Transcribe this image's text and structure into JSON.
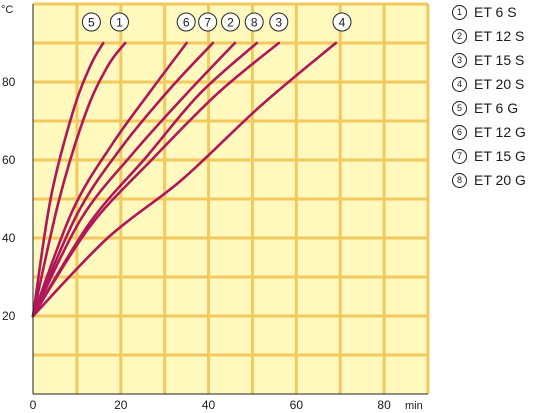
{
  "chart_data": {
    "type": "line",
    "title": "",
    "xlabel": "",
    "ylabel": "",
    "x_unit": "min",
    "y_unit": "°C",
    "xlim": [
      0,
      90
    ],
    "ylim": [
      0,
      100
    ],
    "x_ticks": [
      "0",
      "20",
      "40",
      "60",
      "80"
    ],
    "y_ticks": [
      "20",
      "40",
      "60",
      "80"
    ],
    "grid": true,
    "background_color": "#fff9bd",
    "grid_color": "#f2c95e",
    "line_color": "#b0165a",
    "legend_position": "right",
    "series": [
      {
        "mark": "①",
        "name": "ET 6 S",
        "points": [
          [
            0,
            20
          ],
          [
            6,
            50
          ],
          [
            12,
            72
          ],
          [
            17,
            84
          ],
          [
            21,
            90
          ]
        ]
      },
      {
        "mark": "②",
        "name": "ET 12 S",
        "points": [
          [
            0,
            20
          ],
          [
            11,
            45
          ],
          [
            23,
            62
          ],
          [
            35,
            77
          ],
          [
            46,
            90
          ]
        ]
      },
      {
        "mark": "③",
        "name": "ET 15 S",
        "points": [
          [
            0,
            20
          ],
          [
            13,
            43
          ],
          [
            27,
            60
          ],
          [
            42,
            77
          ],
          [
            56,
            90
          ]
        ]
      },
      {
        "mark": "④",
        "name": "ET 20 S",
        "points": [
          [
            0,
            20
          ],
          [
            17,
            40
          ],
          [
            34,
            55
          ],
          [
            52,
            74
          ],
          [
            69,
            90
          ]
        ]
      },
      {
        "mark": "⑤",
        "name": "ET 6 G",
        "points": [
          [
            0,
            20
          ],
          [
            4,
            50
          ],
          [
            9,
            72
          ],
          [
            13,
            84
          ],
          [
            16,
            90
          ]
        ]
      },
      {
        "mark": "⑥",
        "name": "ET 12 G",
        "points": [
          [
            0,
            20
          ],
          [
            9,
            47
          ],
          [
            18,
            64
          ],
          [
            27,
            78
          ],
          [
            35,
            90
          ]
        ]
      },
      {
        "mark": "⑦",
        "name": "ET 15 G",
        "points": [
          [
            0,
            20
          ],
          [
            10,
            46
          ],
          [
            20,
            63
          ],
          [
            31,
            78
          ],
          [
            41,
            90
          ]
        ]
      },
      {
        "mark": "⑧",
        "name": "ET 20 G",
        "points": [
          [
            0,
            20
          ],
          [
            13,
            44
          ],
          [
            26,
            61
          ],
          [
            38,
            77
          ],
          [
            51,
            90
          ]
        ]
      }
    ],
    "top_labels": [
      {
        "mark": "⑤",
        "x": 13.3
      },
      {
        "mark": "①",
        "x": 19.7
      },
      {
        "mark": "⑥",
        "x": 34.9
      },
      {
        "mark": "⑦",
        "x": 39.8
      },
      {
        "mark": "②",
        "x": 45.0
      },
      {
        "mark": "⑧",
        "x": 50.4
      },
      {
        "mark": "③",
        "x": 56.0
      },
      {
        "mark": "④",
        "x": 70.4
      }
    ]
  }
}
